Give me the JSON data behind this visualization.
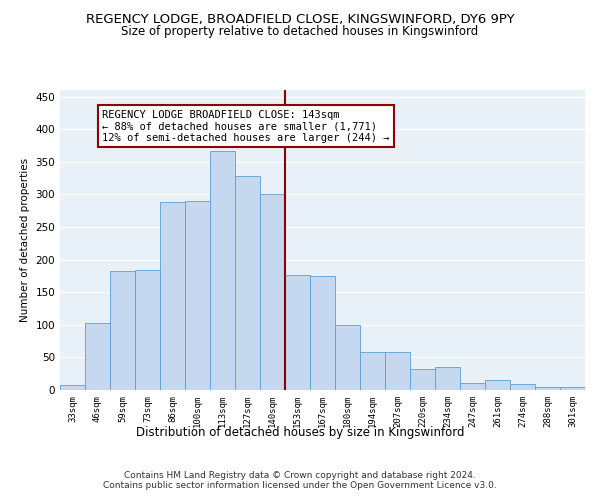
{
  "title_line1": "REGENCY LODGE, BROADFIELD CLOSE, KINGSWINFORD, DY6 9PY",
  "title_line2": "Size of property relative to detached houses in Kingswinford",
  "xlabel": "Distribution of detached houses by size in Kingswinford",
  "ylabel": "Number of detached properties",
  "categories": [
    "33sqm",
    "46sqm",
    "59sqm",
    "73sqm",
    "86sqm",
    "100sqm",
    "113sqm",
    "127sqm",
    "140sqm",
    "153sqm",
    "167sqm",
    "180sqm",
    "194sqm",
    "207sqm",
    "220sqm",
    "234sqm",
    "247sqm",
    "261sqm",
    "274sqm",
    "288sqm",
    "301sqm"
  ],
  "values": [
    7,
    103,
    183,
    184,
    289,
    290,
    366,
    328,
    301,
    176,
    175,
    100,
    58,
    58,
    32,
    36,
    11,
    15,
    9,
    5,
    5
  ],
  "bar_color": "#c5d8f0",
  "bar_edge_color": "#5a9fd4",
  "vline_x_index": 8.5,
  "vline_color": "#8b0000",
  "annotation_text": "REGENCY LODGE BROADFIELD CLOSE: 143sqm\n← 88% of detached houses are smaller (1,771)\n12% of semi-detached houses are larger (244) →",
  "annotation_box_color": "#8b0000",
  "ylim": [
    0,
    460
  ],
  "yticks": [
    0,
    50,
    100,
    150,
    200,
    250,
    300,
    350,
    400,
    450
  ],
  "background_color": "#e8f0f8",
  "grid_color": "#ffffff",
  "footer_text": "Contains HM Land Registry data © Crown copyright and database right 2024.\nContains public sector information licensed under the Open Government Licence v3.0.",
  "title_fontsize": 9.5,
  "subtitle_fontsize": 8.5,
  "annotation_fontsize": 7.5,
  "ylabel_fontsize": 7.5,
  "xlabel_fontsize": 8.5,
  "footer_fontsize": 6.5,
  "ytick_fontsize": 7.5,
  "xtick_fontsize": 6.5
}
